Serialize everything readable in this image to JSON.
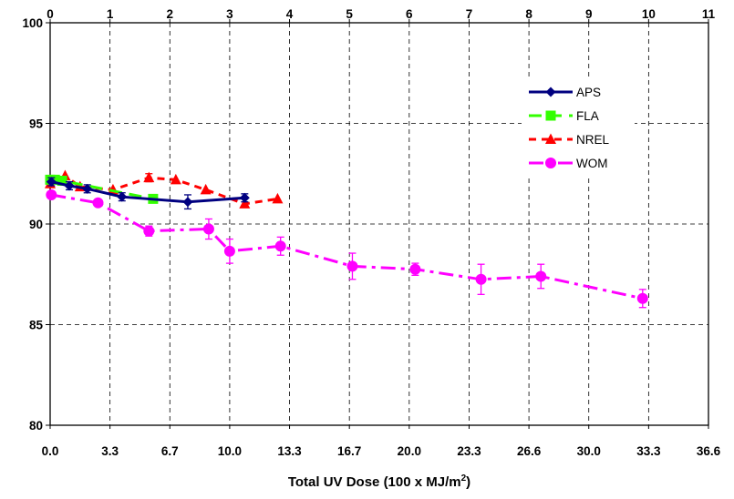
{
  "chart_data": {
    "type": "line",
    "xlabel_prefix": "Total UV Dose  (100 x MJ/m",
    "xlabel_sup": "2",
    "xlabel_suffix": ")",
    "xlim": [
      0,
      11
    ],
    "ylim": [
      80,
      100
    ],
    "yticks": [
      "80",
      "85",
      "90",
      "95",
      "100"
    ],
    "xticks_top": [
      "0",
      "1",
      "2",
      "3",
      "4",
      "5",
      "6",
      "7",
      "8",
      "9",
      "10",
      "11"
    ],
    "xticks_bottom": [
      "0.0",
      "3.3",
      "6.7",
      "10.0",
      "13.3",
      "16.7",
      "20.0",
      "23.3",
      "26.6",
      "30.0",
      "33.3",
      "36.6"
    ],
    "grid": true,
    "legend_position": "top-right",
    "series": [
      {
        "name": "APS",
        "color": "#000080",
        "marker": "diamond",
        "dash": "solid",
        "x": [
          0.02,
          0.32,
          0.62,
          1.2,
          2.3,
          3.25
        ],
        "y": [
          92.1,
          91.9,
          91.75,
          91.35,
          91.1,
          91.3
        ],
        "err": [
          0.2,
          0.2,
          0.2,
          0.2,
          0.35,
          0.2
        ]
      },
      {
        "name": "FLA",
        "color": "#33ff00",
        "marker": "square",
        "dash": "long-dash",
        "x": [
          0.0,
          0.08,
          0.2,
          1.72
        ],
        "y": [
          92.2,
          92.2,
          92.15,
          91.25
        ],
        "err": [
          0,
          0,
          0,
          0
        ]
      },
      {
        "name": "NREL",
        "color": "#ff0000",
        "marker": "triangle",
        "dash": "dash",
        "x": [
          0.0,
          0.25,
          0.5,
          1.05,
          1.65,
          2.1,
          2.6,
          3.25,
          3.8
        ],
        "y": [
          92.0,
          92.4,
          91.85,
          91.7,
          92.3,
          92.2,
          91.7,
          91.0,
          91.25
        ],
        "err": [
          0,
          0,
          0,
          0,
          0.2,
          0,
          0,
          0,
          0
        ]
      },
      {
        "name": "WOM",
        "color": "#ff00ff",
        "marker": "circle",
        "dash": "dash-dot",
        "x": [
          0.02,
          0.8,
          1.65,
          2.65,
          3.0,
          3.85,
          5.05,
          6.1,
          7.2,
          8.2,
          9.9
        ],
        "y": [
          91.45,
          91.05,
          89.65,
          89.75,
          88.65,
          88.9,
          87.9,
          87.75,
          87.25,
          87.4,
          86.3
        ],
        "err": [
          0,
          0.15,
          0.25,
          0.5,
          0.6,
          0.45,
          0.65,
          0.3,
          0.75,
          0.6,
          0.45
        ]
      }
    ]
  }
}
